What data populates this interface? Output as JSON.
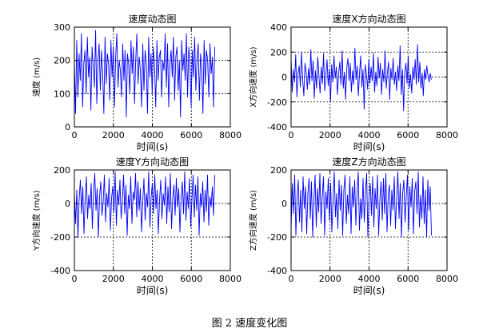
{
  "figure_caption": "图 2  速度变化图",
  "colors": {
    "line": "#0000ff",
    "axes": "#000000",
    "grid": "#000000"
  },
  "chart_data": [
    {
      "type": "line",
      "title": "速度动态图",
      "xlabel": "时间(s)",
      "ylabel": "速度 (m/s)",
      "xlim": [
        0,
        8000
      ],
      "ylim": [
        0,
        300
      ],
      "xticks": [
        0,
        2000,
        4000,
        6000,
        8000
      ],
      "yticks": [
        0,
        100,
        200,
        300
      ],
      "grid": true,
      "series": [
        {
          "x_start": 0,
          "x_end": 7200,
          "values": [
            200,
            40,
            260,
            90,
            220,
            140,
            280,
            60,
            190,
            230,
            100,
            270,
            150,
            210,
            50,
            240,
            180,
            120,
            290,
            70,
            200,
            250,
            110,
            230,
            160,
            40,
            270,
            130,
            220,
            190,
            80,
            260,
            150,
            240,
            60,
            210,
            280,
            120,
            200,
            170,
            90,
            250,
            140,
            230,
            30,
            220,
            190,
            100,
            260,
            160,
            240,
            70,
            200,
            280,
            130,
            210,
            170,
            60,
            250,
            110,
            230,
            190,
            40,
            270,
            150,
            220,
            100,
            240,
            180,
            60,
            260,
            140,
            210,
            230,
            90,
            200,
            170,
            280,
            120,
            250,
            60,
            190,
            230,
            150,
            270,
            80,
            210,
            240,
            110,
            200,
            30,
            260,
            170,
            220,
            140,
            280,
            90,
            240,
            190,
            60,
            230,
            150,
            270,
            110,
            200,
            250,
            80,
            220,
            180,
            40,
            260,
            130,
            230,
            200,
            90,
            250,
            160,
            210,
            60,
            240
          ]
        }
      ]
    },
    {
      "type": "line",
      "title": "速度X方向动态图",
      "xlabel": "时间(s)",
      "ylabel": "X方向速度 (m/s)",
      "xlim": [
        0,
        8000
      ],
      "ylim": [
        -400,
        400
      ],
      "xticks": [
        0,
        2000,
        4000,
        6000,
        8000
      ],
      "yticks": [
        -400,
        -200,
        0,
        200,
        400
      ],
      "grid": true,
      "series": [
        {
          "x_start": 0,
          "x_end": 7200,
          "values": [
            150,
            -120,
            60,
            -40,
            180,
            -160,
            30,
            90,
            -80,
            200,
            -20,
            -150,
            110,
            40,
            -100,
            70,
            -60,
            220,
            -30,
            130,
            -170,
            50,
            -90,
            160,
            10,
            -130,
            80,
            -50,
            190,
            -110,
            20,
            140,
            -70,
            60,
            -200,
            100,
            -40,
            170,
            -10,
            80,
            -140,
            30,
            120,
            -60,
            210,
            -90,
            40,
            -180,
            70,
            150,
            -30,
            110,
            -120,
            50,
            -60,
            230,
            -20,
            90,
            -150,
            30,
            170,
            -80,
            60,
            -260,
            100,
            20,
            -100,
            140,
            -50,
            80,
            -30,
            190,
            -120,
            40,
            -70,
            160,
            -10,
            110,
            -140,
            60,
            -40,
            210,
            -90,
            30,
            120,
            -180,
            70,
            -20,
            150,
            -60,
            40,
            -110,
            90,
            -30,
            250,
            -140,
            60,
            -270,
            30,
            110,
            -50,
            170,
            -90,
            20,
            -130,
            80,
            -20,
            140,
            -60,
            260,
            -40,
            120,
            -90,
            30,
            -150,
            60,
            -20,
            90,
            10,
            -40,
            30,
            -20
          ]
        }
      ]
    },
    {
      "type": "line",
      "title": "速度Y方向动态图",
      "xlabel": "时间(s)",
      "ylabel": "Y方向速度 (m/s)",
      "xlim": [
        0,
        8000
      ],
      "ylim": [
        -400,
        200
      ],
      "xticks": [
        0,
        2000,
        4000,
        6000,
        8000
      ],
      "yticks": [
        -400,
        -200,
        0,
        200
      ],
      "grid": true,
      "series": [
        {
          "x_start": 0,
          "x_end": 7200,
          "values": [
            60,
            -120,
            80,
            -200,
            30,
            140,
            -60,
            100,
            -180,
            20,
            160,
            -90,
            50,
            -30,
            120,
            -150,
            70,
            180,
            -40,
            90,
            -200,
            40,
            130,
            -70,
            10,
            170,
            -110,
            60,
            -20,
            150,
            -160,
            30,
            100,
            -50,
            190,
            -130,
            80,
            -10,
            140,
            -90,
            20,
            170,
            -60,
            110,
            -190,
            50,
            -30,
            160,
            -120,
            70,
            20,
            180,
            -80,
            130,
            -40,
            90,
            -170,
            10,
            150,
            -100,
            60,
            -20,
            190,
            -140,
            40,
            120,
            -60,
            170,
            -30,
            80,
            -180,
            20,
            140,
            -90,
            60,
            -10,
            160,
            -120,
            100,
            -50,
            180,
            -150,
            30,
            110,
            -70,
            150,
            -20,
            90,
            -170,
            40,
            130,
            -60,
            190,
            -100,
            70,
            -30,
            150,
            -140,
            20,
            170,
            -80,
            110,
            -40,
            160,
            -190,
            60,
            -20,
            130,
            -110,
            80,
            -50,
            170,
            -130,
            40,
            -20,
            100,
            -70,
            170
          ]
        }
      ]
    },
    {
      "type": "line",
      "title": "速度Z方向动态图",
      "xlabel": "时间(s)",
      "ylabel": "Z方向速度 (m/s)",
      "xlim": [
        0,
        8000
      ],
      "ylim": [
        -400,
        200
      ],
      "xticks": [
        0,
        2000,
        4000,
        6000,
        8000
      ],
      "yticks": [
        -400,
        -200,
        0,
        200
      ],
      "grid": true,
      "series": [
        {
          "x_start": 0,
          "x_end": 7200,
          "values": [
            -150,
            120,
            -60,
            170,
            -190,
            40,
            140,
            -110,
            80,
            -170,
            160,
            -30,
            100,
            -180,
            60,
            150,
            -90,
            130,
            -200,
            20,
            170,
            -140,
            90,
            -50,
            180,
            -120,
            40,
            160,
            -190,
            70,
            -30,
            150,
            -100,
            120,
            -170,
            30,
            190,
            -80,
            60,
            -150,
            140,
            -40,
            110,
            -190,
            80,
            170,
            -120,
            50,
            -60,
            160,
            -180,
            100,
            -20,
            140,
            -130,
            70,
            190,
            -160,
            30,
            -90,
            150,
            -110,
            60,
            180,
            -200,
            40,
            120,
            -70,
            160,
            -140,
            90,
            -30,
            170,
            -190,
            20,
            130,
            -100,
            150,
            -60,
            180,
            -170,
            50,
            110,
            -130,
            80,
            -40,
            160,
            -150,
            30,
            190,
            -90,
            120,
            -200,
            60,
            140,
            -110,
            40,
            170,
            -160,
            100,
            -20,
            150,
            -180,
            70,
            130,
            -60,
            190,
            -140,
            50,
            -90,
            160,
            -120,
            80,
            -200,
            140,
            -40,
            100,
            -190
          ]
        }
      ]
    }
  ]
}
